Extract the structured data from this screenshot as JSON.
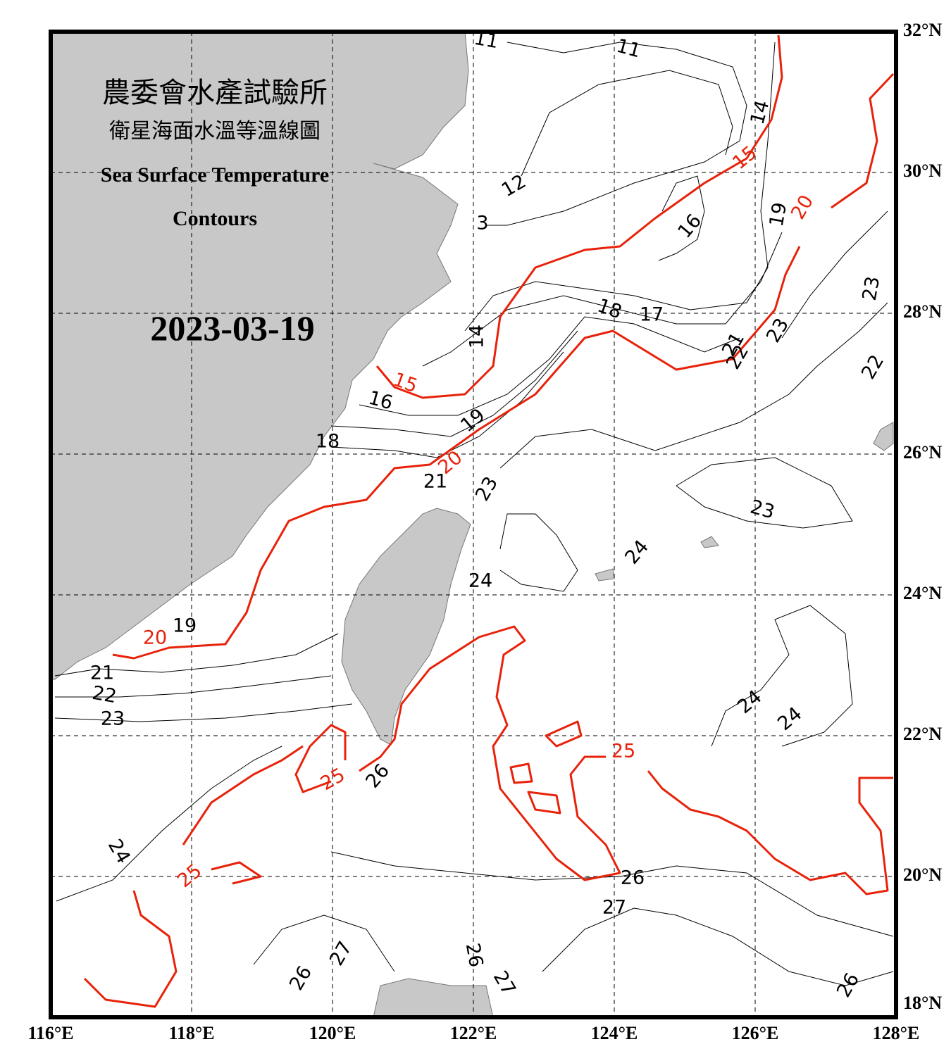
{
  "header": {
    "title_zh": "農委會水產試驗所",
    "subtitle_zh": "衛星海面水溫等溫線圖",
    "title_en_1": "Sea Surface Temperature",
    "title_en_2": "Contours",
    "date": "2023-03-19"
  },
  "lon_labels": [
    "116°E",
    "118°E",
    "120°E",
    "122°E",
    "124°E",
    "126°E",
    "128°E"
  ],
  "lat_labels": [
    "32°N",
    "30°N",
    "28°N",
    "26°N",
    "24°N",
    "22°N",
    "20°N",
    "18°N"
  ],
  "contour_labels": [
    {
      "text": "11",
      "color": "#000000"
    },
    {
      "text": "11",
      "color": "#000000"
    },
    {
      "text": "14",
      "color": "#000000"
    },
    {
      "text": "15",
      "color": "#e8220a"
    },
    {
      "text": "20",
      "color": "#e8220a"
    },
    {
      "text": "19",
      "color": "#000000"
    },
    {
      "text": "12",
      "color": "#000000"
    },
    {
      "text": "3",
      "color": "#000000"
    },
    {
      "text": "16",
      "color": "#000000"
    },
    {
      "text": "18",
      "color": "#000000"
    },
    {
      "text": "17",
      "color": "#000000"
    },
    {
      "text": "23",
      "color": "#000000"
    },
    {
      "text": "14",
      "color": "#000000"
    },
    {
      "text": "21",
      "color": "#000000"
    },
    {
      "text": "22",
      "color": "#000000"
    },
    {
      "text": "23",
      "color": "#000000"
    },
    {
      "text": "22",
      "color": "#000000"
    },
    {
      "text": "15",
      "color": "#e8220a"
    },
    {
      "text": "16",
      "color": "#000000"
    },
    {
      "text": "19",
      "color": "#000000"
    },
    {
      "text": "18",
      "color": "#000000"
    },
    {
      "text": "20",
      "color": "#e8220a"
    },
    {
      "text": "21",
      "color": "#000000"
    },
    {
      "text": "23",
      "color": "#000000"
    },
    {
      "text": "23",
      "color": "#000000"
    },
    {
      "text": "24",
      "color": "#000000"
    },
    {
      "text": "24",
      "color": "#000000"
    },
    {
      "text": "19",
      "color": "#000000"
    },
    {
      "text": "20",
      "color": "#e8220a"
    },
    {
      "text": "21",
      "color": "#000000"
    },
    {
      "text": "22",
      "color": "#000000"
    },
    {
      "text": "23",
      "color": "#000000"
    },
    {
      "text": "24",
      "color": "#000000"
    },
    {
      "text": "24",
      "color": "#000000"
    },
    {
      "text": "25",
      "color": "#e8220a"
    },
    {
      "text": "25",
      "color": "#e8220a"
    },
    {
      "text": "26",
      "color": "#000000"
    },
    {
      "text": "24",
      "color": "#000000"
    },
    {
      "text": "25",
      "color": "#e8220a"
    },
    {
      "text": "26",
      "color": "#000000"
    },
    {
      "text": "27",
      "color": "#000000"
    },
    {
      "text": "27",
      "color": "#000000"
    },
    {
      "text": "26",
      "color": "#000000"
    },
    {
      "text": "26",
      "color": "#000000"
    },
    {
      "text": "27",
      "color": "#000000"
    },
    {
      "text": "26",
      "color": "#000000"
    }
  ]
}
